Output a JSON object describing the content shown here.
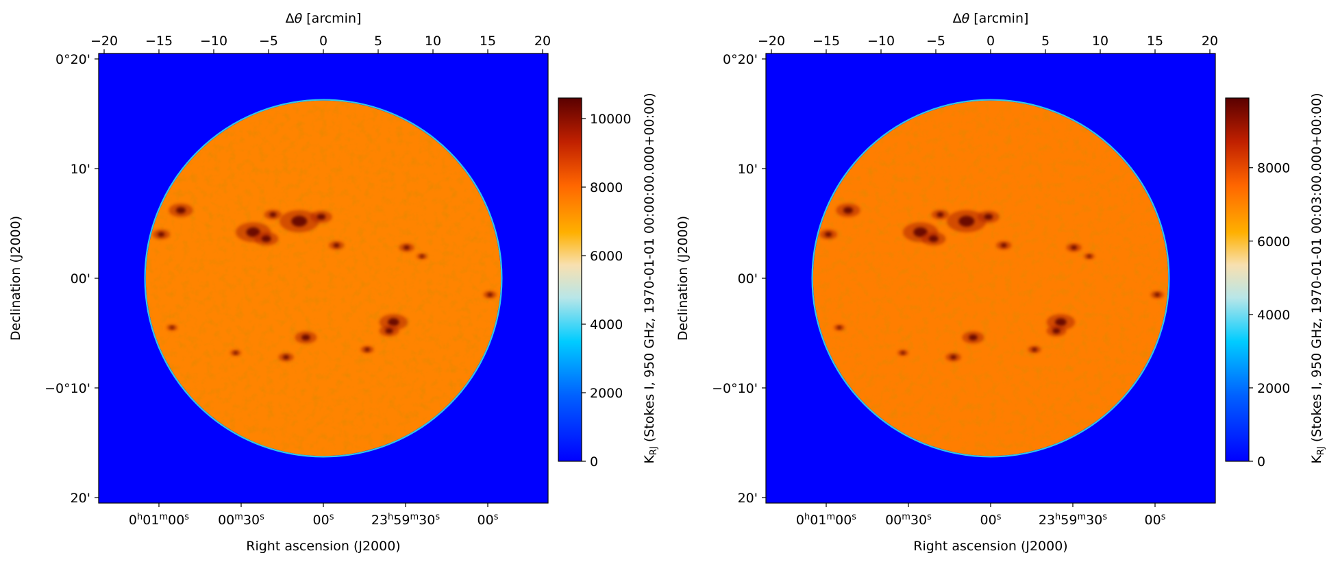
{
  "chart_data": [
    {
      "type": "heatmap",
      "panel_index": 1,
      "x_top_label_prefix": "Δ",
      "x_top_label_symbol": "θ",
      "x_top_label_unit": "[arcmin]",
      "x_top_ticks": [
        "−20",
        "−15",
        "−10",
        "−5",
        "0",
        "5",
        "10",
        "15",
        "20"
      ],
      "x_top_tick_values": [
        -20,
        -15,
        -10,
        -5,
        0,
        5,
        10,
        15,
        20
      ],
      "x_top_range": [
        -20.5,
        20.5
      ],
      "xlabel": "Right ascension (J2000)",
      "ylabel": "Declination (J2000)",
      "ra_ticks": [
        {
          "offset_arcmin": -15,
          "parts": [
            [
              "0",
              ""
            ],
            [
              "h",
              "sup"
            ],
            [
              "01",
              ""
            ],
            [
              "m",
              "sup"
            ],
            [
              "00",
              ""
            ],
            [
              "s",
              "sup"
            ]
          ]
        },
        {
          "offset_arcmin": -7.5,
          "parts": [
            [
              "00",
              ""
            ],
            [
              "m",
              "sup"
            ],
            [
              "30",
              ""
            ],
            [
              "s",
              "sup"
            ]
          ]
        },
        {
          "offset_arcmin": 0,
          "parts": [
            [
              "00",
              ""
            ],
            [
              "s",
              "sup"
            ]
          ]
        },
        {
          "offset_arcmin": 7.5,
          "parts": [
            [
              "23",
              ""
            ],
            [
              "h",
              "sup"
            ],
            [
              "59",
              ""
            ],
            [
              "m",
              "sup"
            ],
            [
              "30",
              ""
            ],
            [
              "s",
              "sup"
            ]
          ]
        },
        {
          "offset_arcmin": 15,
          "parts": [
            [
              "00",
              ""
            ],
            [
              "s",
              "sup"
            ]
          ]
        }
      ],
      "dec_ticks": [
        {
          "value_arcmin": 20,
          "label": "0°20'"
        },
        {
          "value_arcmin": 10,
          "label": "10'"
        },
        {
          "value_arcmin": 0,
          "label": "00'"
        },
        {
          "value_arcmin": -10,
          "label": "−0°10'"
        },
        {
          "value_arcmin": -20,
          "label": "20'"
        }
      ],
      "y_range_arcmin": [
        -20.5,
        20.5
      ],
      "solar_disk_radius_arcmin": 16.2,
      "disk_mean_value": 7500,
      "background_value": 0,
      "colorbar": {
        "label_main": "K",
        "label_sub": "RJ",
        "label_rest": " (Stokes I, 950 GHz, 1970-01-01 00:00:00.000+00:00)",
        "ticks": [
          "0",
          "2000",
          "4000",
          "6000",
          "8000",
          "10000"
        ],
        "tick_values": [
          0,
          2000,
          4000,
          6000,
          8000,
          10000
        ],
        "range": [
          0,
          10600
        ]
      }
    },
    {
      "type": "heatmap",
      "panel_index": 2,
      "x_top_label_prefix": "Δ",
      "x_top_label_symbol": "θ",
      "x_top_label_unit": "[arcmin]",
      "x_top_ticks": [
        "−20",
        "−15",
        "−10",
        "−5",
        "0",
        "5",
        "10",
        "15",
        "20"
      ],
      "x_top_tick_values": [
        -20,
        -15,
        -10,
        -5,
        0,
        5,
        10,
        15,
        20
      ],
      "x_top_range": [
        -20.5,
        20.5
      ],
      "xlabel": "Right ascension (J2000)",
      "ylabel": "Declination (J2000)",
      "ra_ticks": [
        {
          "offset_arcmin": -15,
          "parts": [
            [
              "0",
              ""
            ],
            [
              "h",
              "sup"
            ],
            [
              "01",
              ""
            ],
            [
              "m",
              "sup"
            ],
            [
              "00",
              ""
            ],
            [
              "s",
              "sup"
            ]
          ]
        },
        {
          "offset_arcmin": -7.5,
          "parts": [
            [
              "00",
              ""
            ],
            [
              "m",
              "sup"
            ],
            [
              "30",
              ""
            ],
            [
              "s",
              "sup"
            ]
          ]
        },
        {
          "offset_arcmin": 0,
          "parts": [
            [
              "00",
              ""
            ],
            [
              "s",
              "sup"
            ]
          ]
        },
        {
          "offset_arcmin": 7.5,
          "parts": [
            [
              "23",
              ""
            ],
            [
              "h",
              "sup"
            ],
            [
              "59",
              ""
            ],
            [
              "m",
              "sup"
            ],
            [
              "30",
              ""
            ],
            [
              "s",
              "sup"
            ]
          ]
        },
        {
          "offset_arcmin": 15,
          "parts": [
            [
              "00",
              ""
            ],
            [
              "s",
              "sup"
            ]
          ]
        }
      ],
      "dec_ticks": [
        {
          "value_arcmin": 20,
          "label": "0°20'"
        },
        {
          "value_arcmin": 10,
          "label": "10'"
        },
        {
          "value_arcmin": 0,
          "label": "00'"
        },
        {
          "value_arcmin": -10,
          "label": "−0°10'"
        },
        {
          "value_arcmin": -20,
          "label": "20'"
        }
      ],
      "y_range_arcmin": [
        -20.5,
        20.5
      ],
      "solar_disk_radius_arcmin": 16.2,
      "disk_mean_value": 7100,
      "background_value": 0,
      "colorbar": {
        "label_main": "K",
        "label_sub": "RJ",
        "label_rest": " (Stokes I, 950 GHz, 1970-01-01 00:03:00.000+00:00)",
        "ticks": [
          "0",
          "2000",
          "4000",
          "6000",
          "8000"
        ],
        "tick_values": [
          0,
          2000,
          4000,
          6000,
          8000
        ],
        "range": [
          0,
          9900
        ]
      }
    }
  ]
}
